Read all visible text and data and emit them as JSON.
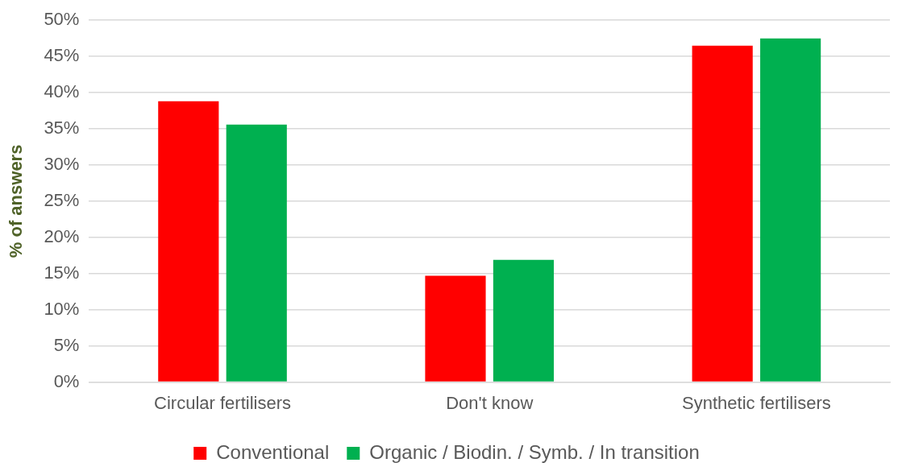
{
  "chart_data": {
    "type": "bar",
    "ylabel": "% of answers",
    "categories": [
      "Circular fertilisers",
      "Don't know",
      "Synthetic fertilisers"
    ],
    "series": [
      {
        "name": "Conventional",
        "color": "#ff0000",
        "values": [
          38.8,
          14.7,
          46.5
        ]
      },
      {
        "name": "Organic / Biodin. / Symb. / In transition",
        "color": "#00b050",
        "values": [
          35.6,
          16.9,
          47.5
        ]
      }
    ],
    "ylim": [
      0,
      50
    ],
    "yticks": [
      {
        "value": 0,
        "label": "0%"
      },
      {
        "value": 5,
        "label": "5%"
      },
      {
        "value": 10,
        "label": "10%"
      },
      {
        "value": 15,
        "label": "15%"
      },
      {
        "value": 20,
        "label": "20%"
      },
      {
        "value": 25,
        "label": "25%"
      },
      {
        "value": 30,
        "label": "30%"
      },
      {
        "value": 35,
        "label": "35%"
      },
      {
        "value": 40,
        "label": "40%"
      },
      {
        "value": 45,
        "label": "45%"
      },
      {
        "value": 50,
        "label": "50%"
      }
    ],
    "grid": "y",
    "legend": "bottom"
  }
}
